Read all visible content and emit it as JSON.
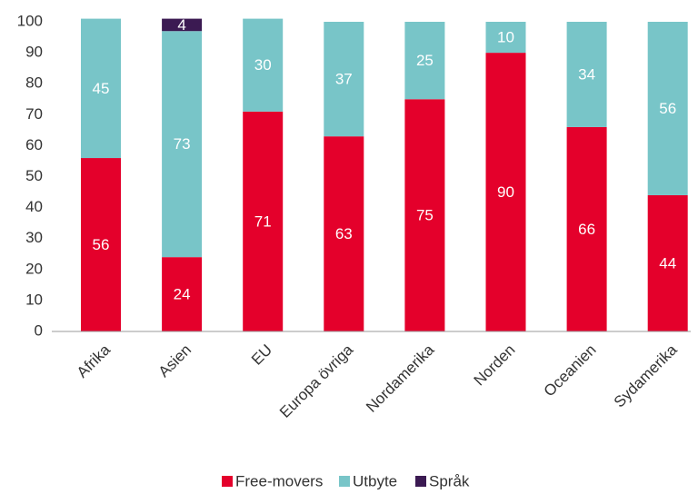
{
  "chart_data": {
    "type": "stacked_bar",
    "categories": [
      "Afrika",
      "Asien",
      "EU",
      "Europa övriga",
      "Nordamerika",
      "Norden",
      "Oceanien",
      "Sydamerika"
    ],
    "series": [
      {
        "name": "Free-movers",
        "color": "#e4002b",
        "values": [
          56,
          24,
          71,
          63,
          75,
          90,
          66,
          44
        ]
      },
      {
        "name": "Utbyte",
        "color": "#78c5c8",
        "values": [
          45,
          73,
          30,
          37,
          25,
          10,
          34,
          56
        ]
      },
      {
        "name": "Språk",
        "color": "#3b1a52",
        "values": [
          null,
          4,
          null,
          null,
          null,
          null,
          null,
          null
        ]
      }
    ],
    "ylim": [
      0,
      100
    ],
    "yticks": [
      0,
      10,
      20,
      30,
      40,
      50,
      60,
      70,
      80,
      90,
      100
    ],
    "grid": false,
    "legend": "bottom"
  }
}
